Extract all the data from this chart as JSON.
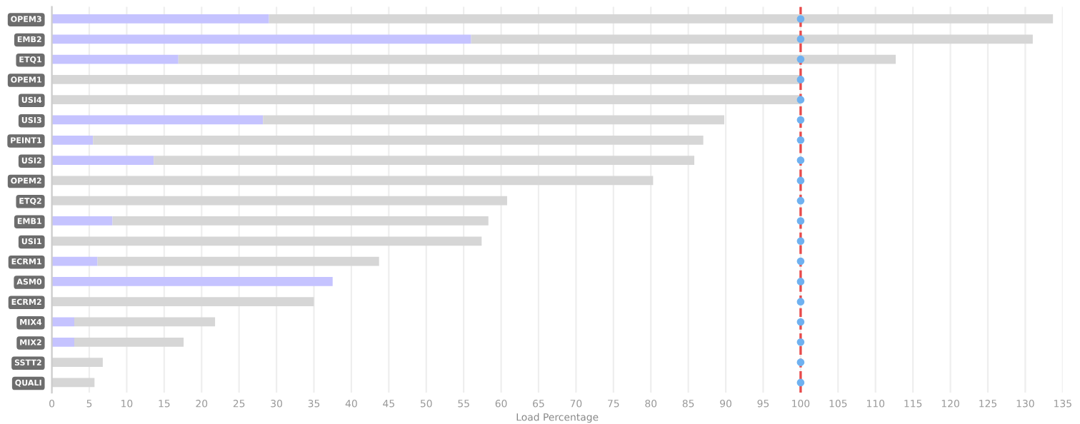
{
  "chart_data": {
    "type": "bar",
    "orientation": "horizontal",
    "stacked": true,
    "xlabel": "Load Percentage",
    "categories": [
      "OPEM3",
      "EMB2",
      "ETQ1",
      "OPEM1",
      "USI4",
      "USI3",
      "PEINT1",
      "USI2",
      "OPEM2",
      "ETQ2",
      "EMB1",
      "USI1",
      "ECRM1",
      "ASM0",
      "ECRM2",
      "MIX4",
      "MIX2",
      "SSTT2",
      "QUALI"
    ],
    "series": [
      {
        "color": "#c5c3ff",
        "values": [
          29,
          56,
          16.9,
          null,
          null,
          28.2,
          5.5,
          13.6,
          null,
          null,
          8.1,
          null,
          6.1,
          37.5,
          null,
          3,
          3,
          null,
          null
        ]
      },
      {
        "color": "#d6d6d6",
        "values": [
          104.7,
          75,
          95.8,
          100,
          100,
          61.6,
          81.5,
          72.2,
          80.3,
          60.8,
          50.2,
          57.4,
          37.6,
          null,
          35,
          18.8,
          14.6,
          6.8,
          5.7
        ]
      },
      {
        "type": "scatter",
        "color": "#6fb1f0",
        "values": [
          100,
          100,
          100,
          100,
          100,
          100,
          100,
          100,
          100,
          100,
          100,
          100,
          100,
          100,
          100,
          100,
          100,
          100,
          100
        ]
      }
    ],
    "ref_lines": [
      {
        "axis": "x",
        "value": 100,
        "color": "#e84a4a",
        "line_style": "dashed"
      }
    ],
    "xlim": [
      0,
      135
    ],
    "xticks": [
      0,
      5,
      10,
      15,
      20,
      25,
      30,
      35,
      40,
      45,
      50,
      55,
      60,
      65,
      70,
      75,
      80,
      85,
      90,
      95,
      100,
      105,
      110,
      115,
      120,
      125,
      130,
      135
    ],
    "grid": "x",
    "marker": "circle"
  }
}
